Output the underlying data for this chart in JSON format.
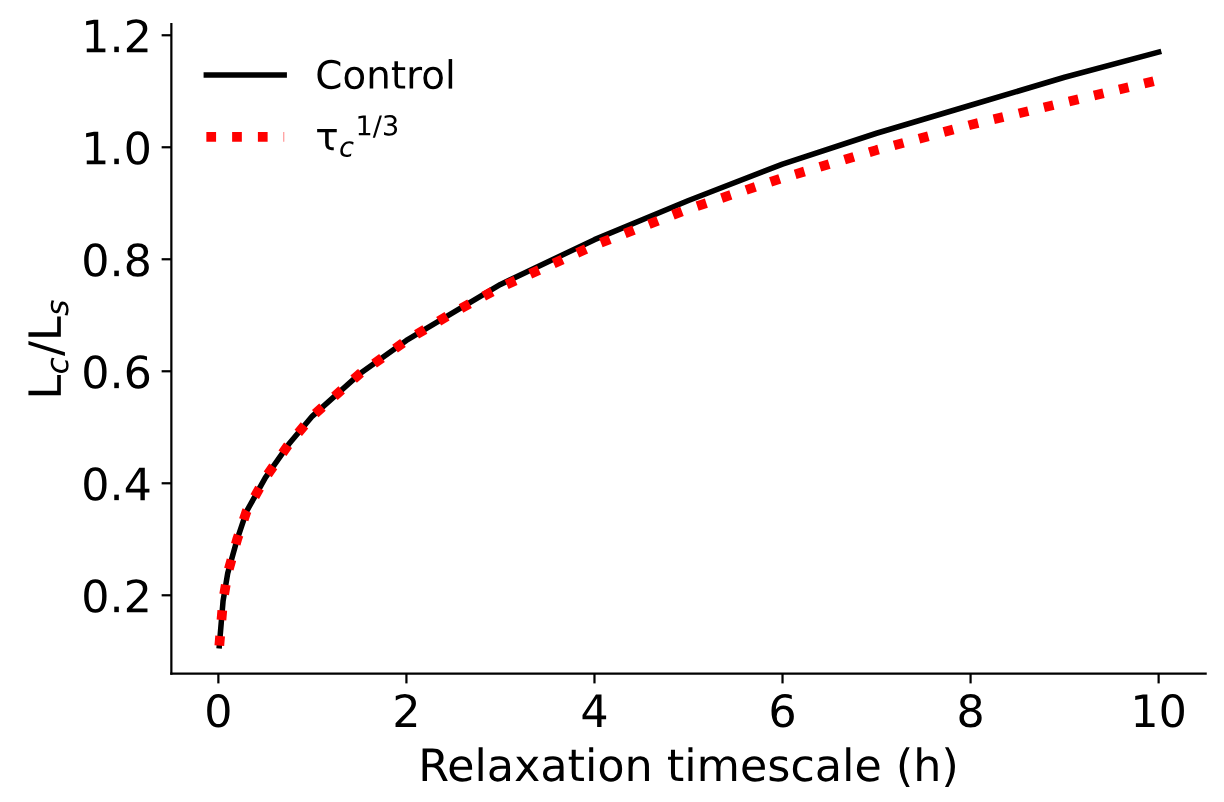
{
  "chart_data": {
    "type": "line",
    "xlabel": "Relaxation timescale (h)",
    "ylabel": "L$_{c}$/L$_{s}$",
    "xlim": [
      -0.5,
      10.5
    ],
    "ylim": [
      0.06,
      1.22
    ],
    "xticks": [
      0,
      2,
      4,
      6,
      8,
      10
    ],
    "yticks": [
      0.2,
      0.4,
      0.6,
      0.8,
      {
        "value": 1.0,
        "label": "1.0"
      },
      1.2
    ],
    "x": [
      0.01,
      0.05,
      0.1,
      0.2,
      0.3,
      0.5,
      0.75,
      1,
      1.5,
      2,
      2.5,
      3,
      4,
      5,
      6,
      7,
      8,
      9,
      10
    ],
    "series": [
      {
        "name": "Control",
        "color": "#000000",
        "line_style": "solid",
        "values": [
          0.11,
          0.19,
          0.24,
          0.3,
          0.35,
          0.41,
          0.47,
          0.52,
          0.595,
          0.655,
          0.705,
          0.755,
          0.835,
          0.905,
          0.97,
          1.025,
          1.075,
          1.125,
          1.17
        ]
      },
      {
        "name": "τ$_{c}$$^{1/3}$",
        "color": "#ff0000",
        "line_style": "dotted",
        "values": [
          0.11,
          0.19,
          0.24,
          0.3,
          0.35,
          0.41,
          0.47,
          0.52,
          0.595,
          0.655,
          0.705,
          0.75,
          0.825,
          0.89,
          0.945,
          0.995,
          1.04,
          1.08,
          1.12
        ]
      }
    ],
    "legend": "top left",
    "grid": false,
    "marker": "none"
  }
}
